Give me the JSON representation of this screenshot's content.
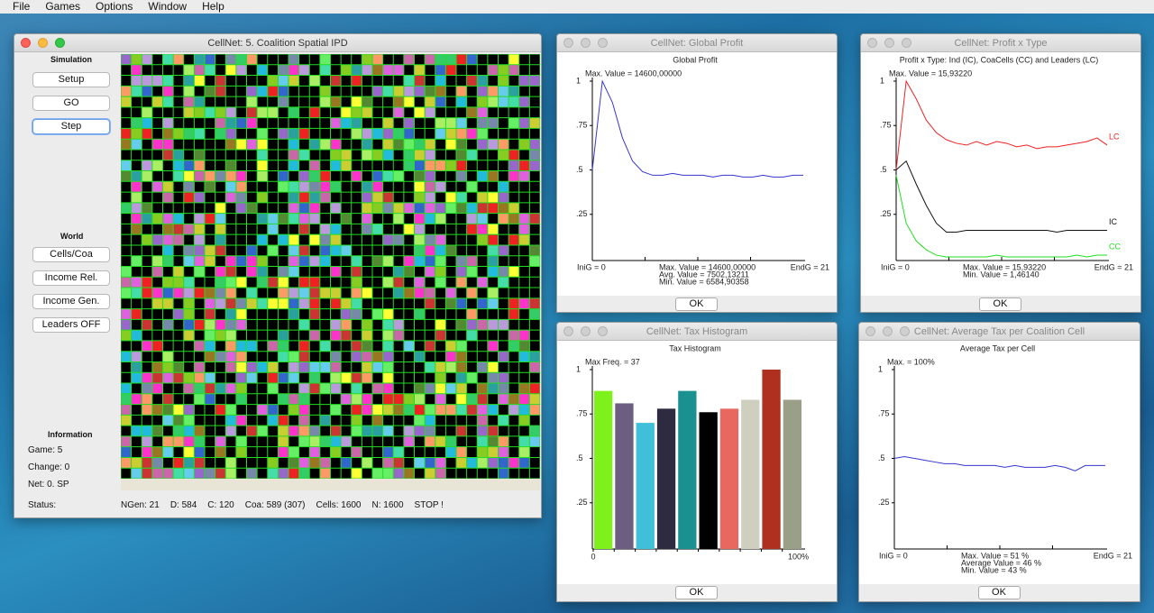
{
  "menubar": {
    "items": [
      "File",
      "Games",
      "Options",
      "Window",
      "Help"
    ]
  },
  "main_window": {
    "title": "CellNet:   5. Coalition Spatial IPD",
    "simulation": {
      "heading": "Simulation",
      "buttons": [
        "Setup",
        "GO",
        "Step"
      ]
    },
    "world": {
      "heading": "World",
      "buttons": [
        "Cells/Coa",
        "Income Rel.",
        "Income Gen.",
        "Leaders OFF"
      ]
    },
    "information": {
      "heading": "Information",
      "lines": [
        "Game: 5",
        "Change: 0",
        "Net: 0. SP"
      ]
    },
    "status": {
      "label": "Status:",
      "items": [
        "NGen: 21",
        "D: 584",
        "C: 120",
        "Coa: 589 (307)",
        "Cells: 1600",
        "N: 1600",
        "STOP !"
      ]
    }
  },
  "global_profit": {
    "window_title": "CellNet: Global Profit",
    "ok": "OK",
    "chart_data": {
      "type": "line",
      "title": "Global Profit",
      "max_label": "Max. Value = 14600,00000",
      "x": [
        0,
        1,
        2,
        3,
        4,
        5,
        6,
        7,
        8,
        9,
        10,
        11,
        12,
        13,
        14,
        15,
        16,
        17,
        18,
        19,
        20,
        21
      ],
      "xlim": [
        0,
        21
      ],
      "ylim": [
        0,
        1
      ],
      "yticks": [
        {
          "value": 0.25,
          "label": ".25"
        },
        {
          "value": 0.5,
          "label": ".5"
        },
        {
          "value": 0.75,
          "label": ".75"
        },
        1
      ],
      "x_start_label": "IniG = 0",
      "x_end_label": "EndG = 21",
      "stats": [
        "Max. Value = 14600,00000",
        "Avg. Value = 7502,13211",
        "Min. Value = 6584,90358"
      ],
      "series": [
        {
          "color": "#3535d0",
          "values": [
            0.5,
            1.0,
            0.88,
            0.68,
            0.55,
            0.49,
            0.47,
            0.47,
            0.48,
            0.47,
            0.47,
            0.47,
            0.46,
            0.47,
            0.47,
            0.46,
            0.46,
            0.47,
            0.46,
            0.46,
            0.47,
            0.47
          ]
        }
      ]
    }
  },
  "profit_type": {
    "window_title": "CellNet: Profit x Type",
    "ok": "OK",
    "chart_data": {
      "type": "line",
      "title": "Profit x Type:  Ind (IC), CoaCells (CC) and Leaders (LC)",
      "max_label": "Max. Value = 15,93220",
      "x": [
        0,
        1,
        2,
        3,
        4,
        5,
        6,
        7,
        8,
        9,
        10,
        11,
        12,
        13,
        14,
        15,
        16,
        17,
        18,
        19,
        20,
        21
      ],
      "xlim": [
        0,
        21
      ],
      "ylim": [
        0,
        1
      ],
      "yticks": [
        {
          "value": 0.25,
          "label": ".25"
        },
        {
          "value": 0.5,
          "label": ".5"
        },
        {
          "value": 0.75,
          "label": ".75"
        },
        1
      ],
      "x_start_label": "IniG = 0",
      "x_end_label": "EndG = 21",
      "stats": [
        "Max. Value = 15,93220",
        "Min. Value = 1,46140"
      ],
      "series": [
        {
          "name": "LC",
          "color": "#ee2222",
          "values": [
            0.5,
            1.0,
            0.9,
            0.78,
            0.71,
            0.67,
            0.65,
            0.64,
            0.66,
            0.64,
            0.66,
            0.65,
            0.63,
            0.64,
            0.62,
            0.63,
            0.63,
            0.64,
            0.65,
            0.66,
            0.68,
            0.64
          ]
        },
        {
          "name": "IC",
          "color": "#111111",
          "values": [
            0.5,
            0.55,
            0.42,
            0.3,
            0.2,
            0.15,
            0.15,
            0.16,
            0.16,
            0.16,
            0.16,
            0.16,
            0.16,
            0.16,
            0.16,
            0.16,
            0.15,
            0.16,
            0.16,
            0.16,
            0.16,
            0.16
          ]
        },
        {
          "name": "CC",
          "color": "#22dd22",
          "values": [
            0.47,
            0.2,
            0.1,
            0.05,
            0.02,
            0.01,
            0.01,
            0.01,
            0.01,
            0.01,
            0.02,
            0.01,
            0.01,
            0.01,
            0.01,
            0.01,
            0.01,
            0.01,
            0.02,
            0.01,
            0.02,
            0.02
          ]
        }
      ]
    }
  },
  "tax_histogram": {
    "window_title": "CellNet: Tax Histogram",
    "ok": "OK",
    "chart_data": {
      "type": "histogram",
      "title": "Tax Histogram",
      "max_label": "Max Freq. = 37",
      "bins": [
        0,
        10,
        20,
        30,
        40,
        50,
        60,
        70,
        80,
        90,
        100
      ],
      "xlim": [
        0,
        100
      ],
      "xticks": [
        0,
        {
          "value": 100,
          "label": "100%"
        }
      ],
      "ylim": [
        0,
        1
      ],
      "yticks": [
        {
          "value": 0.25,
          "label": ".25"
        },
        {
          "value": 0.5,
          "label": ".5"
        },
        {
          "value": 0.75,
          "label": ".75"
        },
        1
      ],
      "values": [
        0.88,
        0.81,
        0.7,
        0.78,
        0.88,
        0.76,
        0.78,
        0.83,
        1.0,
        0.83
      ],
      "colors": [
        "#7ef01a",
        "#6b5e80",
        "#40c0d8",
        "#2e2a40",
        "#1a9090",
        "#000000",
        "#e86860",
        "#cfcfc0",
        "#b03020",
        "#9aa088"
      ]
    }
  },
  "avg_tax": {
    "window_title": "CellNet: Average Tax per Coalition Cell",
    "ok": "OK",
    "chart_data": {
      "type": "line",
      "title": "Average Tax per Cell",
      "max_label": "Max. = 100%",
      "x": [
        0,
        1,
        2,
        3,
        4,
        5,
        6,
        7,
        8,
        9,
        10,
        11,
        12,
        13,
        14,
        15,
        16,
        17,
        18,
        19,
        20,
        21
      ],
      "xlim": [
        0,
        21
      ],
      "ylim": [
        0,
        1
      ],
      "yticks": [
        {
          "value": 0.25,
          "label": ".25"
        },
        {
          "value": 0.5,
          "label": ".5"
        },
        {
          "value": 0.75,
          "label": ".75"
        },
        1
      ],
      "x_start_label": "IniG = 0",
      "x_end_label": "EndG = 21",
      "stats": [
        "Max. Value = 51 %",
        "Average Value = 46 %",
        "Min. Value = 43 %"
      ],
      "series": [
        {
          "color": "#3535d0",
          "values": [
            0.5,
            0.51,
            0.5,
            0.49,
            0.48,
            0.47,
            0.47,
            0.46,
            0.46,
            0.46,
            0.46,
            0.45,
            0.46,
            0.45,
            0.45,
            0.45,
            0.46,
            0.45,
            0.43,
            0.46,
            0.46,
            0.46
          ]
        }
      ]
    }
  }
}
